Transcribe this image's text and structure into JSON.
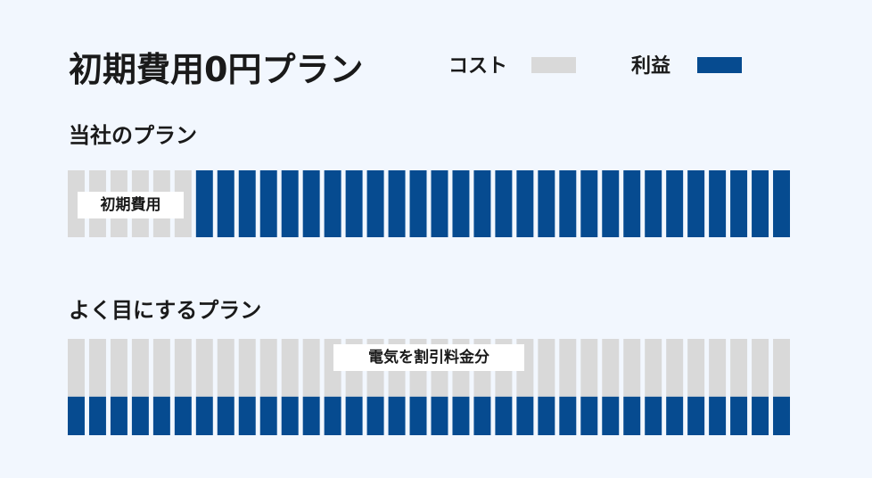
{
  "title": "初期費用0円プラン",
  "legend": {
    "cost_label": "コスト",
    "profit_label": "利益"
  },
  "colors": {
    "cost": "#d9d9d9",
    "profit": "#064b90",
    "background": "#f2f7fe"
  },
  "chart_data": [
    {
      "type": "bar",
      "title": "当社のプラン",
      "segments": 34,
      "series": [
        {
          "name": "コスト",
          "start_segment": 0,
          "count": 6,
          "stack_fraction": 1.0,
          "position": "full"
        },
        {
          "name": "利益",
          "start_segment": 6,
          "count": 28,
          "stack_fraction": 1.0,
          "position": "full"
        }
      ],
      "annotation": "初期費用"
    },
    {
      "type": "bar",
      "title": "よく目にするプラン",
      "segments": 34,
      "series": [
        {
          "name": "コスト",
          "start_segment": 0,
          "count": 34,
          "stack_fraction": 0.6,
          "position": "top"
        },
        {
          "name": "利益",
          "start_segment": 0,
          "count": 34,
          "stack_fraction": 0.4,
          "position": "bottom"
        }
      ],
      "annotation": "電気を割引料金分"
    }
  ]
}
